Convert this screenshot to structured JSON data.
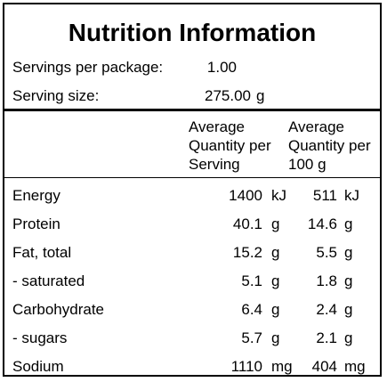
{
  "title": "Nutrition Information",
  "servings": {
    "label": "Servings per package:",
    "value": "1.00"
  },
  "serving_size": {
    "label": "Serving size:",
    "value": "275.00",
    "unit": "g"
  },
  "columns": {
    "per_serving": [
      "Average",
      "Quantity per",
      "Serving"
    ],
    "per_100g": [
      "Average",
      "Quantity per",
      "100 g"
    ]
  },
  "rows": [
    {
      "name": "Energy",
      "serving_value": "1400",
      "serving_unit": "kJ",
      "per100_value": "511",
      "per100_unit": "kJ"
    },
    {
      "name": "Protein",
      "serving_value": "40.1",
      "serving_unit": "g",
      "per100_value": "14.6",
      "per100_unit": "g"
    },
    {
      "name": "Fat, total",
      "serving_value": "15.2",
      "serving_unit": "g",
      "per100_value": "5.5",
      "per100_unit": "g"
    },
    {
      "name": "- saturated",
      "serving_value": "5.1",
      "serving_unit": "g",
      "per100_value": "1.8",
      "per100_unit": "g"
    },
    {
      "name": "Carbohydrate",
      "serving_value": "6.4",
      "serving_unit": "g",
      "per100_value": "2.4",
      "per100_unit": "g"
    },
    {
      "name": "- sugars",
      "serving_value": "5.7",
      "serving_unit": "g",
      "per100_value": "2.1",
      "per100_unit": "g"
    },
    {
      "name": "Sodium",
      "serving_value": "1110",
      "serving_unit": "mg",
      "per100_value": "404",
      "per100_unit": "mg"
    }
  ]
}
